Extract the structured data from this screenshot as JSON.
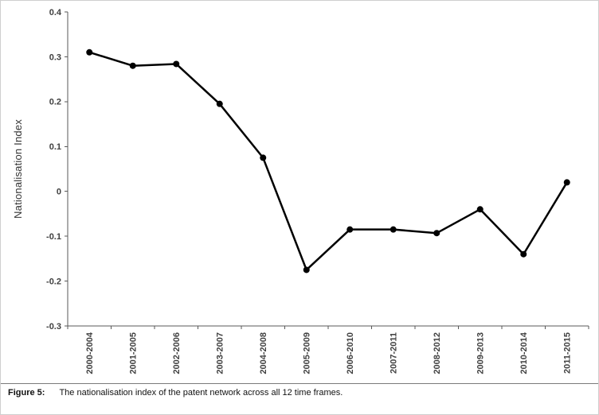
{
  "chart_data": {
    "type": "line",
    "title": "",
    "xlabel": "",
    "ylabel": "Nationalisation Index",
    "categories": [
      "2000-2004",
      "2001-2005",
      "2002-2006",
      "2003-2007",
      "2004-2008",
      "2005-2009",
      "2006-2010",
      "2007-2011",
      "2008-2012",
      "2009-2013",
      "2010-2014",
      "2011-2015"
    ],
    "values": [
      0.31,
      0.28,
      0.284,
      0.195,
      0.075,
      -0.175,
      -0.085,
      -0.085,
      -0.093,
      -0.04,
      -0.14,
      0.02
    ],
    "ylim": [
      -0.3,
      0.4
    ],
    "yticks": [
      0.4,
      0.3,
      0.2,
      0.1,
      0,
      -0.1,
      -0.2,
      -0.3
    ],
    "grid": false,
    "legend": "none",
    "line_color": "#000000",
    "marker": "circle",
    "marker_color": "#000000"
  },
  "caption": {
    "label": "Figure 5:",
    "text": "The nationalisation index of the patent network across all 12 time frames."
  }
}
